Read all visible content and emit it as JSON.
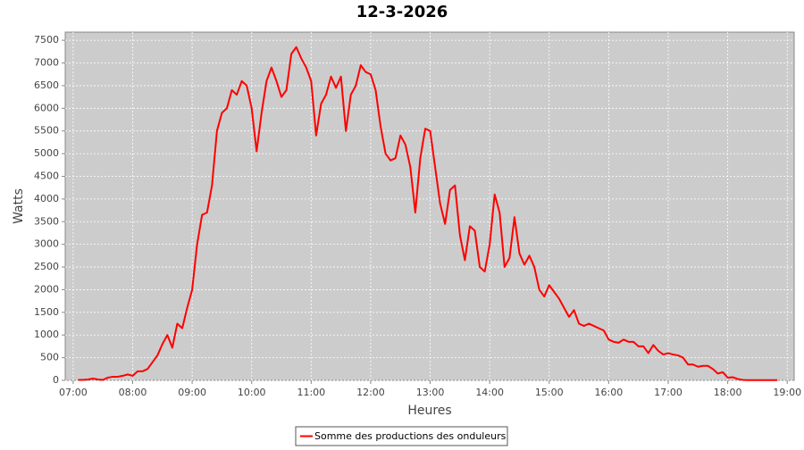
{
  "chart_data": {
    "type": "line",
    "title": "12-3-2026",
    "x_label": "Heures",
    "y_label": "Watts",
    "x": [
      "07:05",
      "07:10",
      "07:15",
      "07:20",
      "07:25",
      "07:30",
      "07:35",
      "07:40",
      "07:45",
      "07:50",
      "07:55",
      "08:00",
      "08:05",
      "08:10",
      "08:15",
      "08:20",
      "08:25",
      "08:30",
      "08:35",
      "08:40",
      "08:45",
      "08:50",
      "08:55",
      "09:00",
      "09:05",
      "09:10",
      "09:15",
      "09:20",
      "09:25",
      "09:30",
      "09:35",
      "09:40",
      "09:45",
      "09:50",
      "09:55",
      "10:00",
      "10:05",
      "10:10",
      "10:15",
      "10:20",
      "10:25",
      "10:30",
      "10:35",
      "10:40",
      "10:45",
      "10:50",
      "10:55",
      "11:00",
      "11:05",
      "11:10",
      "11:15",
      "11:20",
      "11:25",
      "11:30",
      "11:35",
      "11:40",
      "11:45",
      "11:50",
      "11:55",
      "12:00",
      "12:05",
      "12:10",
      "12:15",
      "12:20",
      "12:25",
      "12:30",
      "12:35",
      "12:40",
      "12:45",
      "12:50",
      "12:55",
      "13:00",
      "13:05",
      "13:10",
      "13:15",
      "13:20",
      "13:25",
      "13:30",
      "13:35",
      "13:40",
      "13:45",
      "13:50",
      "13:55",
      "14:00",
      "14:05",
      "14:10",
      "14:15",
      "14:20",
      "14:25",
      "14:30",
      "14:35",
      "14:40",
      "14:45",
      "14:50",
      "14:55",
      "15:00",
      "15:05",
      "15:10",
      "15:15",
      "15:20",
      "15:25",
      "15:30",
      "15:35",
      "15:40",
      "15:45",
      "15:50",
      "15:55",
      "16:00",
      "16:05",
      "16:10",
      "16:15",
      "16:20",
      "16:25",
      "16:30",
      "16:35",
      "16:40",
      "16:45",
      "16:50",
      "16:55",
      "17:00",
      "17:05",
      "17:10",
      "17:15",
      "17:20",
      "17:25",
      "17:30",
      "17:35",
      "17:40",
      "17:45",
      "17:50",
      "17:55",
      "18:00",
      "18:05",
      "18:10",
      "18:15",
      "18:20",
      "18:25",
      "18:30",
      "18:35",
      "18:40",
      "18:45",
      "18:50"
    ],
    "series": [
      {
        "name": "Somme des productions des onduleurs",
        "color": "#ff0000",
        "values": [
          10,
          10,
          20,
          40,
          20,
          10,
          60,
          80,
          80,
          100,
          130,
          100,
          200,
          200,
          250,
          400,
          550,
          800,
          1000,
          720,
          1250,
          1150,
          1600,
          2000,
          3000,
          3650,
          3700,
          4300,
          5500,
          5900,
          6000,
          6400,
          6300,
          6600,
          6500,
          6000,
          5050,
          5900,
          6600,
          6900,
          6600,
          6250,
          6400,
          7200,
          7350,
          7100,
          6900,
          6600,
          5400,
          6100,
          6300,
          6700,
          6450,
          6700,
          5500,
          6300,
          6500,
          6950,
          6800,
          6750,
          6400,
          5600,
          5000,
          4850,
          4900,
          5400,
          5200,
          4700,
          3700,
          4900,
          5550,
          5500,
          4700,
          3900,
          3450,
          4200,
          4300,
          3200,
          2650,
          3400,
          3300,
          2500,
          2400,
          3000,
          4100,
          3700,
          2500,
          2700,
          3600,
          2800,
          2550,
          2750,
          2500,
          2000,
          1850,
          2100,
          1950,
          1800,
          1600,
          1400,
          1550,
          1250,
          1200,
          1250,
          1200,
          1150,
          1100,
          900,
          850,
          830,
          900,
          850,
          850,
          750,
          750,
          600,
          780,
          650,
          570,
          600,
          570,
          550,
          500,
          350,
          350,
          300,
          320,
          320,
          250,
          150,
          180,
          60,
          70,
          30,
          10,
          5,
          5,
          5,
          5,
          5,
          5,
          5
        ]
      }
    ],
    "xlim": [
      "06:52",
      "19:07"
    ],
    "xticks": [
      "07:00",
      "08:00",
      "09:00",
      "10:00",
      "11:00",
      "12:00",
      "13:00",
      "14:00",
      "15:00",
      "16:00",
      "17:00",
      "18:00",
      "19:00"
    ],
    "ylim": [
      0,
      7680
    ],
    "yticks": [
      0,
      500,
      1000,
      1500,
      2000,
      2500,
      3000,
      3500,
      4000,
      4500,
      5000,
      5500,
      6000,
      6500,
      7000,
      7500
    ],
    "grid": true,
    "legend": "bottom"
  }
}
